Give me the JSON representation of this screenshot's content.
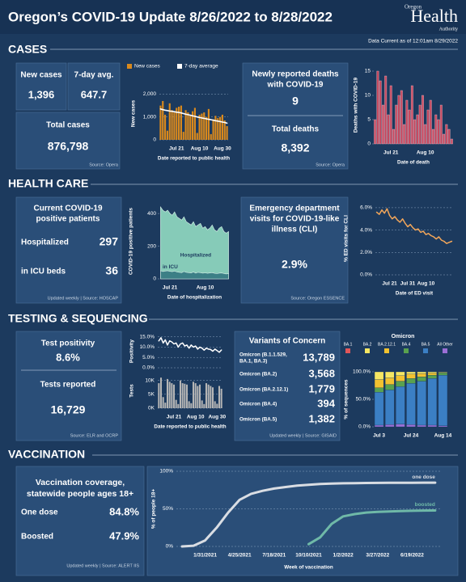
{
  "header": {
    "title": "Oregon’s COVID-19 Update 8/26/2022 to 8/28/2022",
    "logo_top": "Oregon",
    "logo_main": "Health",
    "logo_sub": "Authority",
    "data_current": "Data Current as of 12:01am 8/29/2022"
  },
  "sections": [
    "CASES",
    "HEALTH CARE",
    "TESTING & SEQUENCING",
    "VACCINATION"
  ],
  "cases": {
    "new_label": "New cases",
    "new_value": "1,396",
    "avg_label": "7-day avg.",
    "avg_value": "647.7",
    "total_label": "Total cases",
    "total_value": "876,798",
    "source": "Source: Opera",
    "deaths_label": [
      "Newly reported deaths",
      "with COVID-19"
    ],
    "deaths_value": "9",
    "total_deaths_label": "Total deaths",
    "total_deaths_value": "8,392",
    "deaths_source": "Source: Opera"
  },
  "health": {
    "patients_label": [
      "Current COVID-19",
      "positive patients"
    ],
    "hosp_label": "Hospitalized",
    "hosp_value": "297",
    "icu_label": "in ICU beds",
    "icu_value": "36",
    "source": "Updated weekly | Source: HOSCAP",
    "ed_label": [
      "Emergency department",
      "visits for COVID-19-like",
      "illness (CLI)"
    ],
    "ed_value": "2.9%",
    "ed_source": "Source: Oregon ESSENCE"
  },
  "testing": {
    "positivity_label": "Test positivity",
    "positivity_value": "8.6%",
    "tests_label": "Tests reported",
    "tests_value": "16,729",
    "source": "Source: ELR and OCRP",
    "variants_title": "Variants of Concern",
    "variants": [
      {
        "name": [
          "Omicron (B.1.1.529,",
          "BA.1, BA.3)"
        ],
        "value": "13,789"
      },
      {
        "name": [
          "Omicron (BA.2)"
        ],
        "value": "3,568"
      },
      {
        "name": [
          "Omicron (BA.2.12.1)"
        ],
        "value": "1,779"
      },
      {
        "name": [
          "Omicron (BA.4)"
        ],
        "value": "394"
      },
      {
        "name": [
          "Omicron (BA.5)"
        ],
        "value": "1,382"
      }
    ],
    "variants_source": "Updated weekly | Source: GISAID"
  },
  "vaccination": {
    "title": [
      "Vaccination coverage,",
      "statewide people ages 18+"
    ],
    "one_label": "One dose",
    "one_value": "84.8%",
    "boosted_label": "Boosted",
    "boosted_value": "47.9%",
    "source": "Updated weekly | Source: ALERT IIS"
  },
  "chart_data": [
    {
      "type": "bar",
      "legend": "top",
      "grid": true,
      "ylabel": "New cases",
      "xlabel": "Date reported to public health",
      "categories": [
        null,
        null,
        null,
        null,
        null,
        null,
        null,
        "Jul 21",
        null,
        null,
        null,
        null,
        null,
        null,
        null,
        null,
        null,
        "Aug 10",
        null,
        null,
        null,
        null,
        null,
        null,
        null,
        null,
        null,
        "Aug 30",
        null,
        null
      ],
      "ylim": [
        0,
        2300
      ],
      "yticks": [
        0,
        {
          "value": 1000,
          "label": "1,000"
        },
        {
          "value": 2000,
          "label": "2,000"
        }
      ],
      "series": [
        {
          "name": "New cases",
          "style": "bar",
          "color": "#d9891c",
          "values": [
            1500,
            1700,
            1100,
            400,
            1600,
            1300,
            1200,
            1400,
            1450,
            1500,
            350,
            1300,
            1200,
            1100,
            1250,
            1400,
            300,
            1100,
            1150,
            1200,
            1000,
            1350,
            250,
            900,
            1050,
            950,
            1000,
            1100,
            850,
            600
          ]
        },
        {
          "name": "7-day average",
          "style": "line",
          "color": "#ffffff",
          "values": [
            1350,
            1320,
            1300,
            1280,
            1260,
            1250,
            1230,
            1210,
            1200,
            1180,
            1150,
            1120,
            1100,
            1080,
            1050,
            1030,
            1000,
            980,
            960,
            940,
            920,
            900,
            880,
            860,
            840,
            820,
            800,
            780,
            760,
            730
          ]
        }
      ]
    },
    {
      "type": "bar",
      "grid": false,
      "ylabel": "Deaths with COVID-19",
      "xlabel": "Date of death",
      "categories": [
        null,
        null,
        null,
        null,
        null,
        null,
        "Jul 21",
        null,
        null,
        null,
        null,
        null,
        null,
        null,
        null,
        null,
        null,
        null,
        null,
        "Aug 10",
        null,
        null,
        null,
        null,
        null,
        null,
        null,
        null,
        null,
        null
      ],
      "ylim": [
        0,
        16
      ],
      "yticks": [
        0,
        5,
        10,
        15
      ],
      "series": [
        {
          "style": "bar",
          "color": "#c5485f",
          "values": [
            5,
            15,
            13,
            8,
            14,
            6,
            12,
            3,
            8,
            10,
            11,
            4,
            9,
            7,
            12,
            5,
            6,
            8,
            10,
            4,
            7,
            9,
            3,
            6,
            5,
            8,
            2,
            4,
            3,
            1
          ]
        }
      ]
    },
    {
      "type": "area",
      "grid": false,
      "ylabel": "COVID-19 positive patients",
      "xlabel": "Date of hospitalization",
      "categories": [
        null,
        null,
        null,
        null,
        "Jul 21",
        null,
        null,
        null,
        null,
        null,
        null,
        null,
        null,
        null,
        null,
        null,
        null,
        null,
        null,
        "Aug 10",
        null,
        null,
        null,
        null,
        null,
        null,
        null,
        null,
        null,
        null
      ],
      "ylim": [
        0,
        460
      ],
      "yticks": [
        0,
        200,
        400
      ],
      "series": [
        {
          "name": "Hospitalized",
          "color": "#86cbb8",
          "values": [
            440,
            420,
            410,
            420,
            400,
            390,
            410,
            380,
            370,
            360,
            380,
            350,
            340,
            330,
            350,
            320,
            330,
            340,
            310,
            320,
            300,
            310,
            330,
            300,
            290,
            310,
            320,
            290,
            280,
            290
          ]
        },
        {
          "name": "in ICU",
          "color": "#3c7f86",
          "values": [
            50,
            45,
            48,
            50,
            46,
            44,
            48,
            42,
            40,
            38,
            45,
            40,
            38,
            36,
            42,
            35,
            40,
            38,
            35,
            37,
            34,
            36,
            38,
            34,
            32,
            35,
            36,
            33,
            30,
            32
          ]
        }
      ]
    },
    {
      "type": "line",
      "grid": true,
      "ylabel": "% ED visits for CLI",
      "xlabel": "Date of ED visit",
      "categories": [
        null,
        null,
        null,
        null,
        null,
        "Jul 21",
        null,
        null,
        null,
        null,
        null,
        null,
        "Jul 31",
        null,
        null,
        null,
        null,
        null,
        null,
        "Aug 10",
        null,
        null,
        null,
        null,
        null,
        null,
        null,
        null,
        null,
        null
      ],
      "ylim": [
        0,
        6.5
      ],
      "yticks": [
        {
          "value": 0,
          "label": "0.0%"
        },
        {
          "value": 2,
          "label": "2.0%"
        },
        {
          "value": 4,
          "label": "4.0%"
        },
        {
          "value": 6,
          "label": "6.0%"
        }
      ],
      "series": [
        {
          "color": "#f2a65a",
          "values": [
            5.6,
            5.4,
            5.8,
            5.5,
            5.9,
            5.3,
            5.0,
            5.2,
            4.9,
            4.7,
            5.0,
            4.6,
            4.3,
            4.5,
            4.2,
            4.0,
            4.1,
            3.8,
            3.9,
            3.6,
            3.7,
            3.5,
            3.4,
            3.2,
            3.4,
            3.1,
            3.0,
            2.8,
            2.9,
            3.0
          ]
        }
      ]
    },
    {
      "type": "line",
      "grid": true,
      "ylabel": "Positivity",
      "ylim": [
        0,
        16
      ],
      "yticks": [
        {
          "value": 0,
          "label": "0.0%"
        },
        {
          "value": 5,
          "label": "5.0%"
        },
        {
          "value": 10,
          "label": "10.0%"
        },
        {
          "value": 15,
          "label": "15.0%"
        }
      ],
      "series": [
        {
          "color": "#ffffff",
          "values": [
            13,
            14.5,
            12,
            13.5,
            11,
            13,
            12.5,
            11.5,
            12,
            10,
            11.5,
            12,
            10.5,
            11,
            9.5,
            11,
            10,
            10.5,
            9,
            10,
            9.5,
            8.5,
            9.5,
            9,
            8.8,
            8,
            9,
            8.3,
            7.5,
            8.6
          ]
        }
      ]
    },
    {
      "type": "bar",
      "grid": true,
      "ylabel": "Tests",
      "xlabel": "Date reported to public health",
      "categories": [
        null,
        null,
        null,
        null,
        null,
        null,
        null,
        "Jul 21",
        null,
        null,
        null,
        null,
        null,
        null,
        null,
        null,
        null,
        "Aug 10",
        null,
        null,
        null,
        null,
        null,
        null,
        null,
        null,
        null,
        "Aug 30",
        null,
        null
      ],
      "ylim": [
        0,
        12500
      ],
      "yticks": [
        {
          "value": 0,
          "label": "0K"
        },
        {
          "value": 5000,
          "label": "5K"
        },
        {
          "value": 10000,
          "label": "10K"
        }
      ],
      "series": [
        {
          "style": "bar",
          "color": "#b5b5b5",
          "values": [
            9000,
            11000,
            4000,
            2000,
            10500,
            9500,
            9000,
            8500,
            3000,
            1500,
            10000,
            9000,
            8800,
            8500,
            2500,
            1800,
            9500,
            9000,
            8000,
            8500,
            2800,
            1500,
            9000,
            8500,
            8000,
            7500,
            2500,
            1600,
            8000,
            7000
          ]
        }
      ]
    },
    {
      "type": "stacked_bar",
      "legend": "top",
      "grid": false,
      "title": "Omicron",
      "ylabel": "% of sequences",
      "categories": [
        "Jul 3",
        null,
        null,
        "Jul 24",
        null,
        null,
        "Aug 14"
      ],
      "ylim": [
        0,
        100
      ],
      "yticks": [
        {
          "value": 0,
          "label": "0.0%"
        },
        {
          "value": 50,
          "label": "50.0%"
        },
        {
          "value": 100,
          "label": "100.0%"
        }
      ],
      "series": [
        {
          "name": "BA.1",
          "color": "#e15759",
          "values": [
            0,
            0,
            0,
            0,
            0,
            0,
            0
          ]
        },
        {
          "name": "BA.2",
          "color": "#f5e663",
          "values": [
            14,
            11,
            7,
            4,
            3,
            2,
            1
          ]
        },
        {
          "name": "BA.2.12.1",
          "color": "#f2c230",
          "values": [
            15,
            12,
            10,
            8,
            6,
            4,
            1
          ]
        },
        {
          "name": "BA.4",
          "color": "#59a14f",
          "values": [
            8,
            10,
            10,
            9,
            8,
            6,
            4
          ]
        },
        {
          "name": "BA.5",
          "color": "#3b7fc4",
          "values": [
            60,
            63,
            68,
            75,
            80,
            85,
            92
          ]
        },
        {
          "name": "All Other",
          "color": "#9b6fd6",
          "values": [
            3,
            4,
            5,
            4,
            3,
            3,
            2
          ]
        }
      ]
    },
    {
      "type": "line",
      "grid": true,
      "end_labels": true,
      "ylabel": "% of people 18+",
      "xlabel": "Week of vaccination",
      "categories": [
        null,
        null,
        "1/31/2021",
        null,
        null,
        "4/25/2021",
        null,
        null,
        "7/18/2021",
        null,
        null,
        "10/10/2021",
        null,
        null,
        "1/2/2022",
        null,
        null,
        "3/27/2022",
        null,
        null,
        "6/19/2022",
        null,
        null
      ],
      "ylim": [
        0,
        100
      ],
      "yticks": [
        {
          "value": 0,
          "label": "0%"
        },
        {
          "value": 50,
          "label": "50%"
        },
        {
          "value": 100,
          "label": "100%"
        }
      ],
      "series": [
        {
          "name": "one dose",
          "color": "#d9dde3",
          "values": [
            0,
            1,
            8,
            25,
            45,
            62,
            70,
            74,
            77,
            79,
            81,
            82,
            83,
            83.5,
            84,
            84.2,
            84.4,
            84.5,
            84.6,
            84.7,
            84.7,
            84.8,
            84.8
          ]
        },
        {
          "name": "boosted",
          "color": "#6fb9a8",
          "values": [
            null,
            null,
            null,
            null,
            null,
            null,
            null,
            null,
            null,
            null,
            null,
            3,
            12,
            30,
            40,
            43,
            45,
            46,
            46.5,
            47,
            47.4,
            47.7,
            47.9
          ]
        }
      ]
    }
  ]
}
